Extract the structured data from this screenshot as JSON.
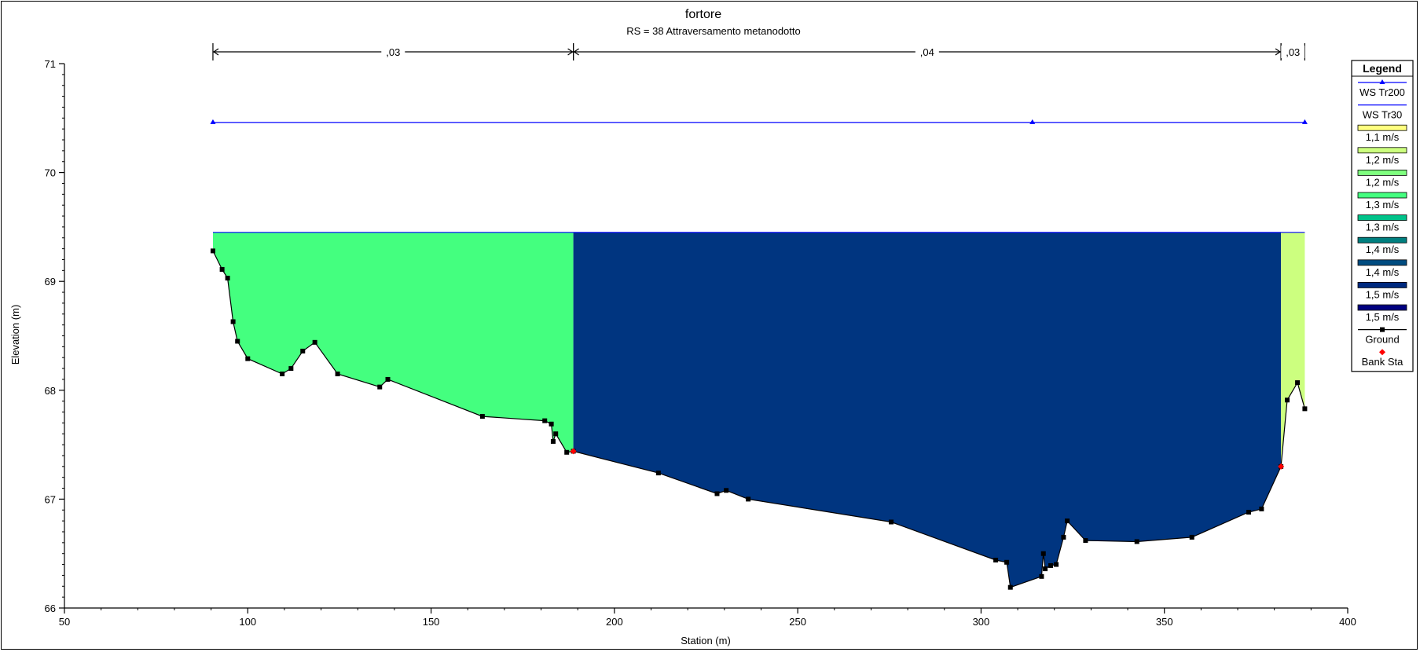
{
  "chart_data": {
    "type": "area",
    "title": "fortore",
    "subtitle": "RS = 38  Attraversamento metanodotto",
    "xlabel": "Station (m)",
    "ylabel": "Elevation (m)",
    "xlim": [
      50,
      400
    ],
    "ylim": [
      66,
      71
    ],
    "xticks": [
      "50",
      "100",
      "150",
      "200",
      "250",
      "300",
      "350",
      "400"
    ],
    "yticks": [
      "66",
      "67",
      "68",
      "69",
      "70",
      "71"
    ],
    "xtick_values": [
      50,
      100,
      150,
      200,
      250,
      300,
      350,
      400
    ],
    "ytick_values": [
      66,
      67,
      68,
      69,
      70,
      71
    ],
    "grid": false,
    "legend_position": "right",
    "manning": [
      {
        "label": ",03",
        "from": 90.5,
        "to": 188.8
      },
      {
        "label": ",04",
        "from": 188.8,
        "to": 381.8
      },
      {
        "label": ",03",
        "from": 381.8,
        "to": 388.3
      }
    ],
    "ws_tr200": {
      "elevation": 70.46,
      "x": [
        90.5,
        314,
        388.3
      ]
    },
    "ws_tr30": {
      "elevation": 69.45
    },
    "velocity_fill": [
      {
        "from": 90.5,
        "to": 188.8,
        "color": "#44ff7f"
      },
      {
        "from": 188.8,
        "to": 381.8,
        "color": "#003580"
      },
      {
        "from": 381.8,
        "to": 388.3,
        "color": "#ccff7f"
      }
    ],
    "ground": {
      "x": [
        90.5,
        93,
        94.5,
        96,
        97.2,
        100,
        109.4,
        111.8,
        115,
        118.3,
        124.5,
        136,
        138.2,
        164,
        181,
        182.8,
        183.3,
        184,
        187,
        188.8,
        212,
        228,
        230.5,
        236.5,
        275.5,
        304,
        307,
        308,
        316.5,
        317,
        317.5,
        319,
        320.5,
        322.5,
        323.5,
        328.5,
        342.5,
        357.5,
        373,
        376.5,
        381.8,
        383.5,
        386.3,
        388.3
      ],
      "y": [
        69.28,
        69.11,
        69.03,
        68.63,
        68.45,
        68.29,
        68.15,
        68.2,
        68.36,
        68.44,
        68.15,
        68.03,
        68.1,
        67.76,
        67.72,
        67.69,
        67.53,
        67.6,
        67.43,
        67.44,
        67.24,
        67.05,
        67.08,
        67.0,
        66.79,
        66.44,
        66.42,
        66.19,
        66.29,
        66.5,
        66.36,
        66.39,
        66.4,
        66.65,
        66.8,
        66.62,
        66.61,
        66.65,
        66.88,
        66.91,
        67.3,
        67.91,
        68.07,
        67.83
      ]
    },
    "bank_stations": [
      {
        "x": 188.8,
        "y": 67.44
      },
      {
        "x": 381.8,
        "y": 67.3
      }
    ],
    "legend": {
      "title": "Legend",
      "items": [
        {
          "label": "WS Tr200",
          "kind": "ws200",
          "color": "#0000ff"
        },
        {
          "label": "WS Tr30",
          "kind": "line",
          "color": "#0000ff"
        },
        {
          "label": "1,1 m/s",
          "kind": "swatch",
          "color": "#ffff7f"
        },
        {
          "label": "1,2 m/s",
          "kind": "swatch",
          "color": "#ccff7f"
        },
        {
          "label": "1,2 m/s",
          "kind": "swatch",
          "color": "#7fff7f"
        },
        {
          "label": "1,3 m/s",
          "kind": "swatch",
          "color": "#44ff7f"
        },
        {
          "label": "1,3 m/s",
          "kind": "swatch",
          "color": "#00c38a"
        },
        {
          "label": "1,4 m/s",
          "kind": "swatch",
          "color": "#007f7f"
        },
        {
          "label": "1,4 m/s",
          "kind": "swatch",
          "color": "#004c80"
        },
        {
          "label": "1,5 m/s",
          "kind": "swatch",
          "color": "#002a80"
        },
        {
          "label": "1,5 m/s",
          "kind": "swatch",
          "color": "#000080"
        },
        {
          "label": "Ground",
          "kind": "ground",
          "color": "#000000"
        },
        {
          "label": "Bank Sta",
          "kind": "bank",
          "color": "#ff0000"
        }
      ]
    }
  }
}
